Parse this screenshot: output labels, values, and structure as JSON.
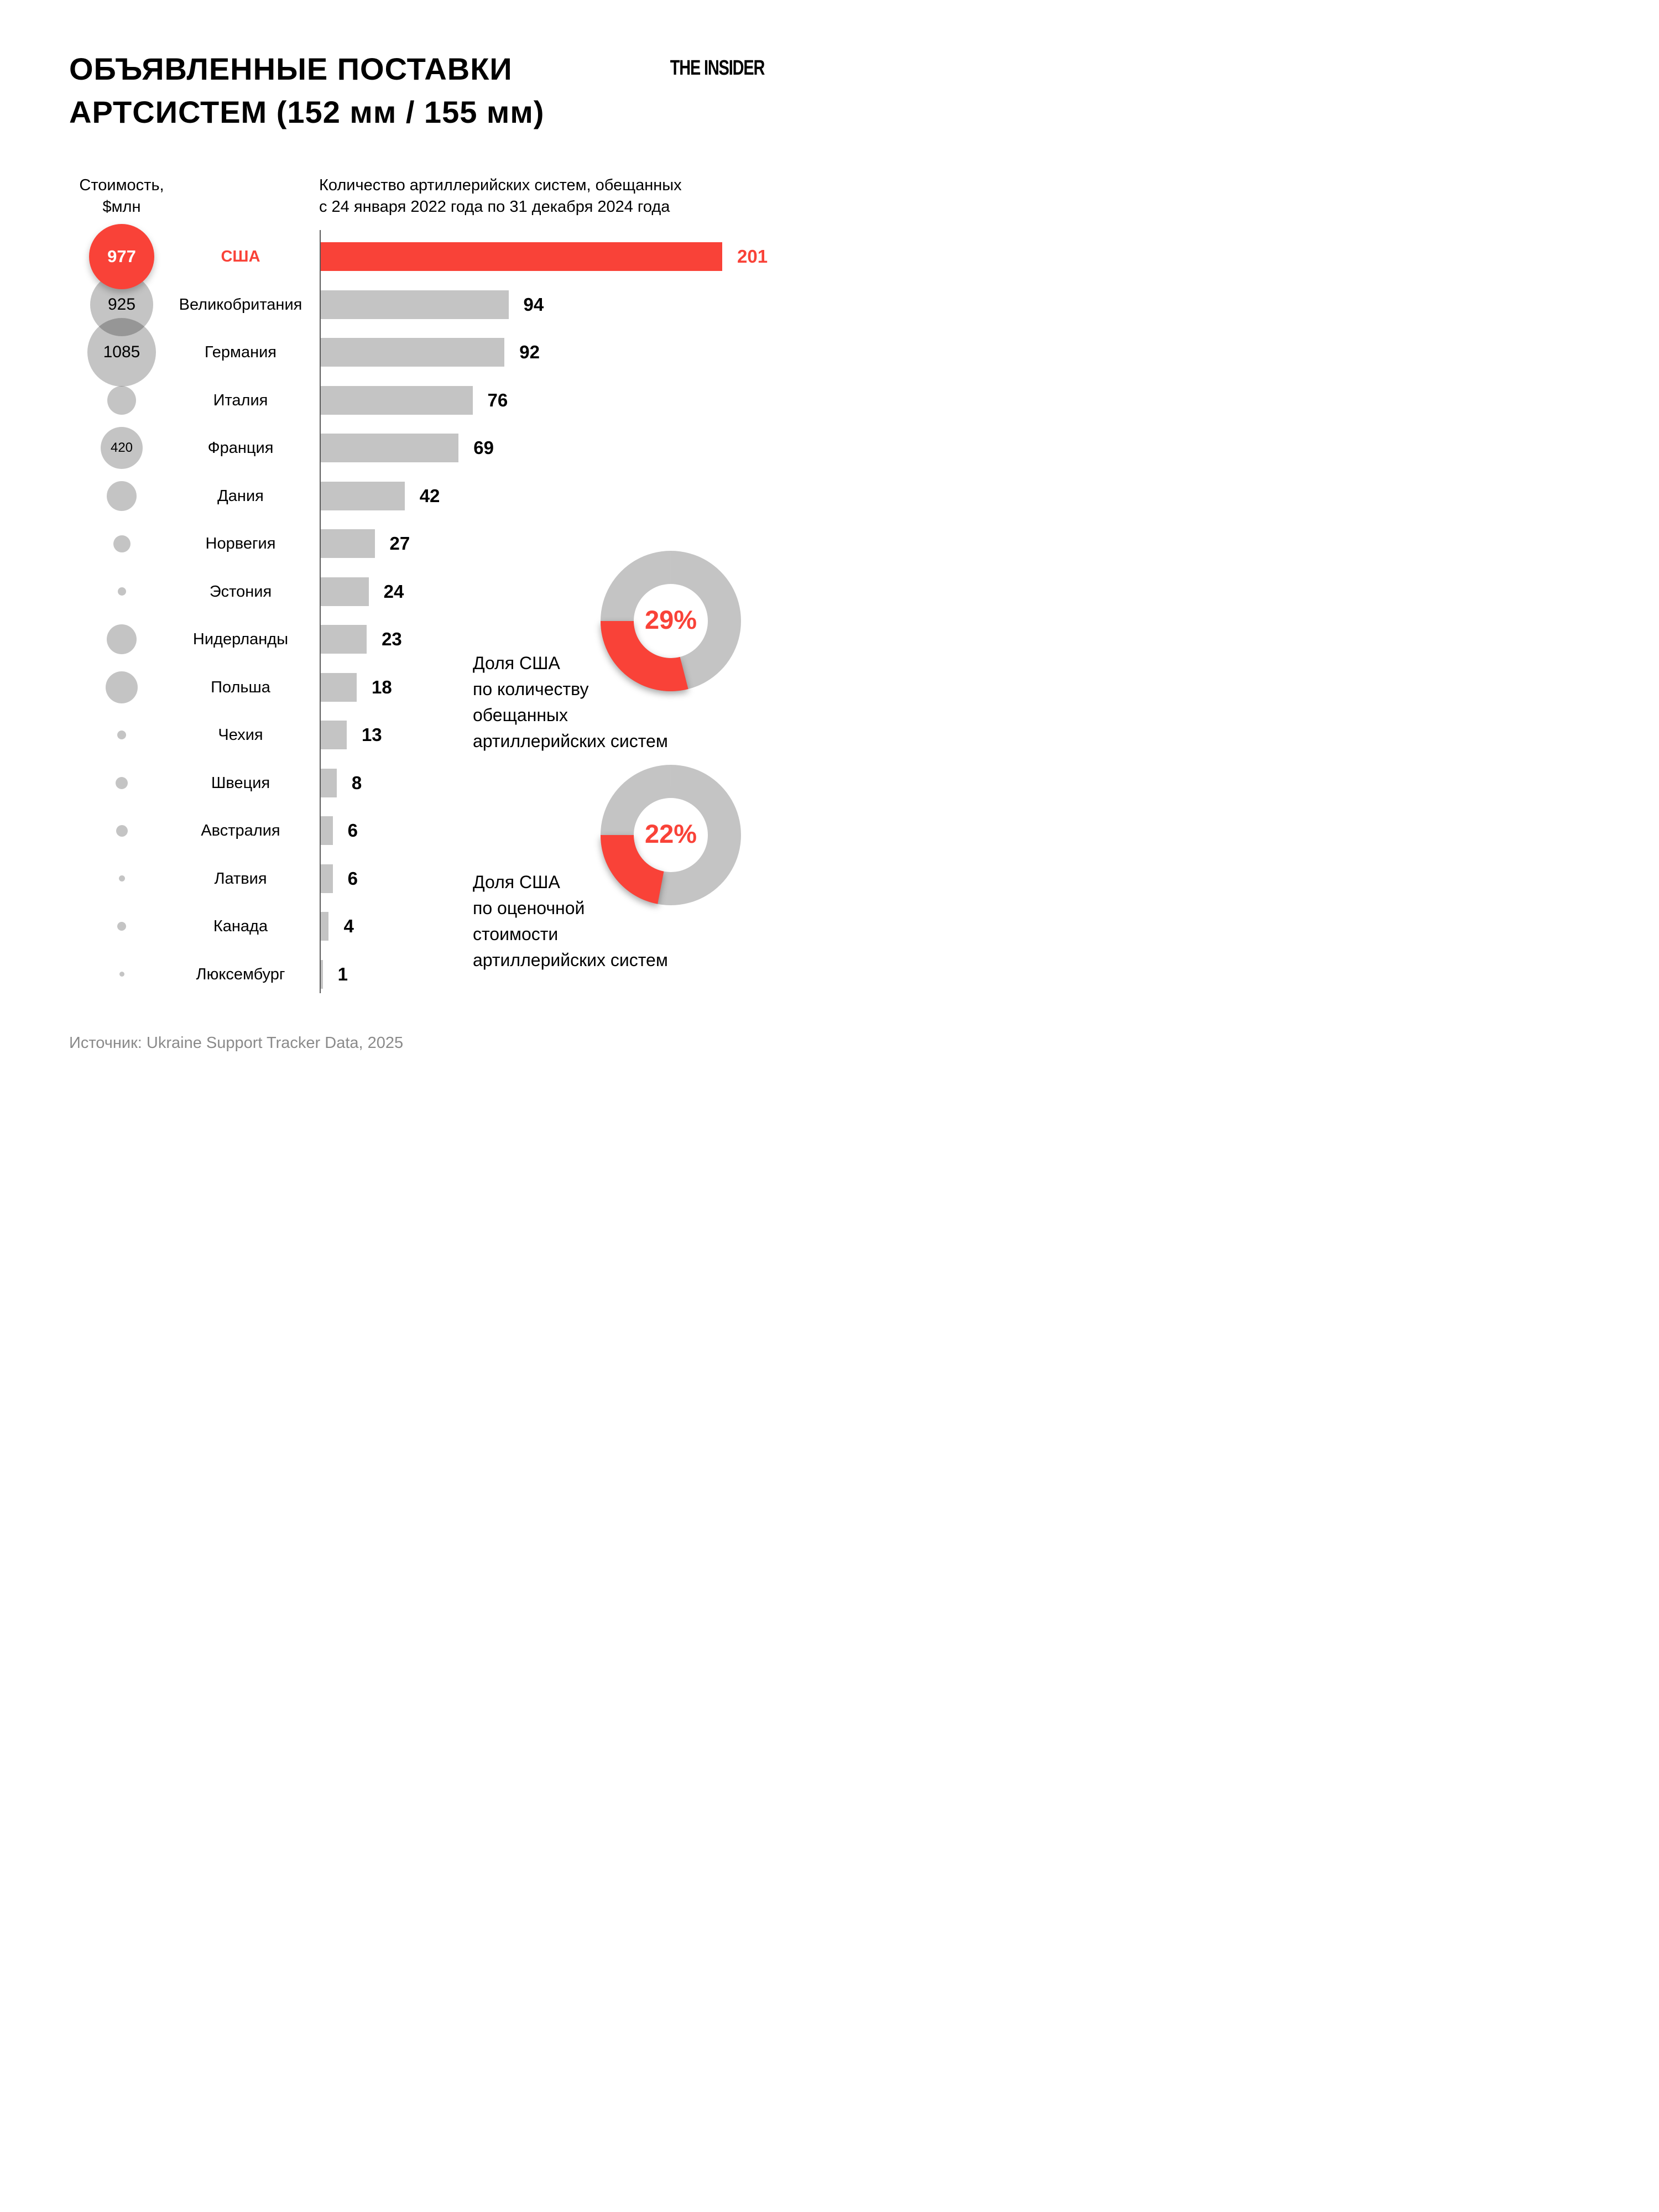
{
  "page": {
    "title_line1": "ОБЪЯВЛЕННЫЕ ПОСТАВКИ",
    "title_line2": "АРТСИСТЕМ (152 мм / 155 мм)",
    "logo": "THE INSIDER",
    "source": "Источник: Ukraine Support Tracker Data, 2025"
  },
  "chart_data": {
    "type": "bar",
    "cost_axis_header_line1": "Стоимость,",
    "cost_axis_header_line2": "$млн",
    "count_header_line1": "Количество артиллерийских систем, обещанных",
    "count_header_line2": "с 24 января 2022 года по 31 декабря 2024 года",
    "x_max": 201,
    "rows": [
      {
        "country": "США",
        "systems": 201,
        "cost_musd": 977,
        "bubble_diameter": 118,
        "highlight": true
      },
      {
        "country": "Великобритания",
        "systems": 94,
        "cost_musd": 925,
        "bubble_diameter": 114,
        "highlight": false
      },
      {
        "country": "Германия",
        "systems": 92,
        "cost_musd": 1085,
        "bubble_diameter": 124,
        "highlight": false
      },
      {
        "country": "Италия",
        "systems": 76,
        "cost_musd": null,
        "bubble_diameter": 52,
        "highlight": false
      },
      {
        "country": "Франция",
        "systems": 69,
        "cost_musd": 420,
        "bubble_diameter": 76,
        "highlight": false
      },
      {
        "country": "Дания",
        "systems": 42,
        "cost_musd": null,
        "bubble_diameter": 54,
        "highlight": false
      },
      {
        "country": "Норвегия",
        "systems": 27,
        "cost_musd": null,
        "bubble_diameter": 31,
        "highlight": false
      },
      {
        "country": "Эстония",
        "systems": 24,
        "cost_musd": null,
        "bubble_diameter": 15,
        "highlight": false
      },
      {
        "country": "Нидерланды",
        "systems": 23,
        "cost_musd": null,
        "bubble_diameter": 54,
        "highlight": false
      },
      {
        "country": "Польша",
        "systems": 18,
        "cost_musd": null,
        "bubble_diameter": 58,
        "highlight": false
      },
      {
        "country": "Чехия",
        "systems": 13,
        "cost_musd": null,
        "bubble_diameter": 16,
        "highlight": false
      },
      {
        "country": "Швеция",
        "systems": 8,
        "cost_musd": null,
        "bubble_diameter": 22,
        "highlight": false
      },
      {
        "country": "Австралия",
        "systems": 6,
        "cost_musd": null,
        "bubble_diameter": 21,
        "highlight": false
      },
      {
        "country": "Латвия",
        "systems": 6,
        "cost_musd": null,
        "bubble_diameter": 11,
        "highlight": false
      },
      {
        "country": "Канада",
        "systems": 4,
        "cost_musd": null,
        "bubble_diameter": 16,
        "highlight": false
      },
      {
        "country": "Люксембург",
        "systems": 1,
        "cost_musd": null,
        "bubble_diameter": 9,
        "highlight": false
      }
    ],
    "donuts": [
      {
        "value_pct": 29,
        "caption_lines": [
          "Доля США",
          "по количеству",
          "обещанных",
          "артиллерийских систем"
        ]
      },
      {
        "value_pct": 22,
        "caption_lines": [
          "Доля США",
          "по оценочной",
          "стоимости",
          "артиллерийских систем"
        ]
      }
    ],
    "legend_position": "none",
    "grid": false
  },
  "colors": {
    "accent": "#F94238",
    "bar_gray": "#C4C4C4",
    "bubble_gray": "rgba(0,0,0,0.23)",
    "donut_gray": "#C4C4C4",
    "source_text": "#8A8A8A",
    "axis": "#5a5a5a"
  }
}
